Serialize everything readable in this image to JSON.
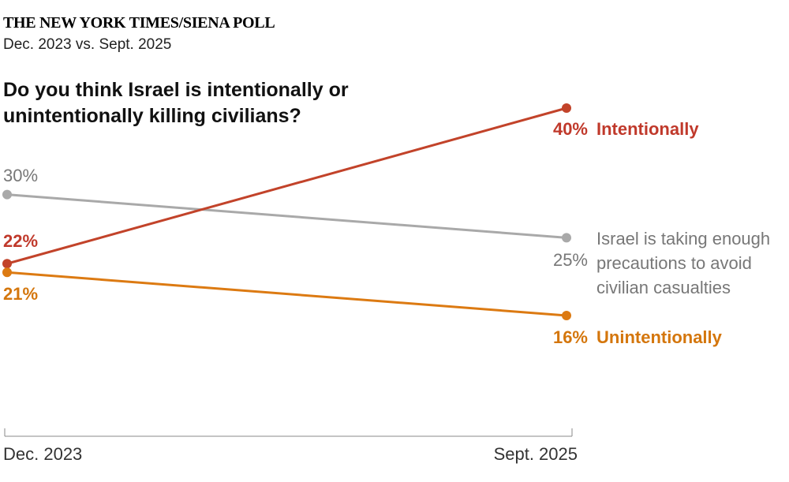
{
  "chart_data": {
    "type": "line",
    "header": "THE NEW YORK TIMES/SIENA POLL",
    "subtitle": "Dec. 2023 vs. Sept. 2025",
    "title": "Do you think Israel is intentionally or unintentionally killing civilians?",
    "categories": [
      "Dec. 2023",
      "Sept. 2025"
    ],
    "series": [
      {
        "name": "Israel is taking enough precautions to avoid civilian casualties",
        "color": "#a9a9a9",
        "values": [
          30,
          25
        ],
        "value_labels": [
          "30%",
          "25%"
        ]
      },
      {
        "name": "Intentionally",
        "color": "#c2432a",
        "values": [
          22,
          40
        ],
        "value_labels": [
          "22%",
          "40%"
        ]
      },
      {
        "name": "Unintentionally",
        "color": "#dc7a12",
        "values": [
          21,
          16
        ],
        "value_labels": [
          "21%",
          "16%"
        ]
      }
    ]
  }
}
